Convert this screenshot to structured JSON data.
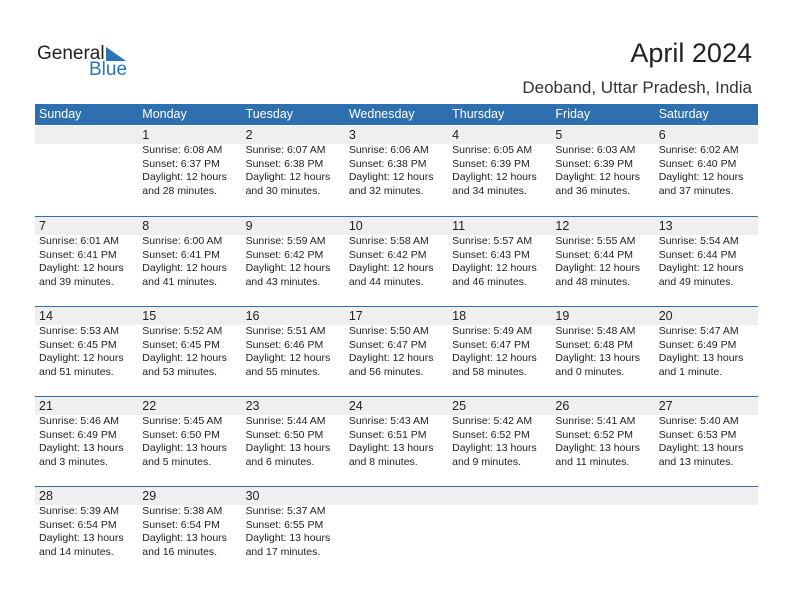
{
  "logo": {
    "word1": "General",
    "word2": "Blue"
  },
  "title": "April 2024",
  "location": "Deoband, Uttar Pradesh, India",
  "weekdays": [
    "Sunday",
    "Monday",
    "Tuesday",
    "Wednesday",
    "Thursday",
    "Friday",
    "Saturday"
  ],
  "first_weekday_offset": 1,
  "days": [
    {
      "d": "1",
      "sunrise": "Sunrise: 6:08 AM",
      "sunset": "Sunset: 6:37 PM",
      "daylight1": "Daylight: 12 hours",
      "daylight2": "and 28 minutes."
    },
    {
      "d": "2",
      "sunrise": "Sunrise: 6:07 AM",
      "sunset": "Sunset: 6:38 PM",
      "daylight1": "Daylight: 12 hours",
      "daylight2": "and 30 minutes."
    },
    {
      "d": "3",
      "sunrise": "Sunrise: 6:06 AM",
      "sunset": "Sunset: 6:38 PM",
      "daylight1": "Daylight: 12 hours",
      "daylight2": "and 32 minutes."
    },
    {
      "d": "4",
      "sunrise": "Sunrise: 6:05 AM",
      "sunset": "Sunset: 6:39 PM",
      "daylight1": "Daylight: 12 hours",
      "daylight2": "and 34 minutes."
    },
    {
      "d": "5",
      "sunrise": "Sunrise: 6:03 AM",
      "sunset": "Sunset: 6:39 PM",
      "daylight1": "Daylight: 12 hours",
      "daylight2": "and 36 minutes."
    },
    {
      "d": "6",
      "sunrise": "Sunrise: 6:02 AM",
      "sunset": "Sunset: 6:40 PM",
      "daylight1": "Daylight: 12 hours",
      "daylight2": "and 37 minutes."
    },
    {
      "d": "7",
      "sunrise": "Sunrise: 6:01 AM",
      "sunset": "Sunset: 6:41 PM",
      "daylight1": "Daylight: 12 hours",
      "daylight2": "and 39 minutes."
    },
    {
      "d": "8",
      "sunrise": "Sunrise: 6:00 AM",
      "sunset": "Sunset: 6:41 PM",
      "daylight1": "Daylight: 12 hours",
      "daylight2": "and 41 minutes."
    },
    {
      "d": "9",
      "sunrise": "Sunrise: 5:59 AM",
      "sunset": "Sunset: 6:42 PM",
      "daylight1": "Daylight: 12 hours",
      "daylight2": "and 43 minutes."
    },
    {
      "d": "10",
      "sunrise": "Sunrise: 5:58 AM",
      "sunset": "Sunset: 6:42 PM",
      "daylight1": "Daylight: 12 hours",
      "daylight2": "and 44 minutes."
    },
    {
      "d": "11",
      "sunrise": "Sunrise: 5:57 AM",
      "sunset": "Sunset: 6:43 PM",
      "daylight1": "Daylight: 12 hours",
      "daylight2": "and 46 minutes."
    },
    {
      "d": "12",
      "sunrise": "Sunrise: 5:55 AM",
      "sunset": "Sunset: 6:44 PM",
      "daylight1": "Daylight: 12 hours",
      "daylight2": "and 48 minutes."
    },
    {
      "d": "13",
      "sunrise": "Sunrise: 5:54 AM",
      "sunset": "Sunset: 6:44 PM",
      "daylight1": "Daylight: 12 hours",
      "daylight2": "and 49 minutes."
    },
    {
      "d": "14",
      "sunrise": "Sunrise: 5:53 AM",
      "sunset": "Sunset: 6:45 PM",
      "daylight1": "Daylight: 12 hours",
      "daylight2": "and 51 minutes."
    },
    {
      "d": "15",
      "sunrise": "Sunrise: 5:52 AM",
      "sunset": "Sunset: 6:45 PM",
      "daylight1": "Daylight: 12 hours",
      "daylight2": "and 53 minutes."
    },
    {
      "d": "16",
      "sunrise": "Sunrise: 5:51 AM",
      "sunset": "Sunset: 6:46 PM",
      "daylight1": "Daylight: 12 hours",
      "daylight2": "and 55 minutes."
    },
    {
      "d": "17",
      "sunrise": "Sunrise: 5:50 AM",
      "sunset": "Sunset: 6:47 PM",
      "daylight1": "Daylight: 12 hours",
      "daylight2": "and 56 minutes."
    },
    {
      "d": "18",
      "sunrise": "Sunrise: 5:49 AM",
      "sunset": "Sunset: 6:47 PM",
      "daylight1": "Daylight: 12 hours",
      "daylight2": "and 58 minutes."
    },
    {
      "d": "19",
      "sunrise": "Sunrise: 5:48 AM",
      "sunset": "Sunset: 6:48 PM",
      "daylight1": "Daylight: 13 hours",
      "daylight2": "and 0 minutes."
    },
    {
      "d": "20",
      "sunrise": "Sunrise: 5:47 AM",
      "sunset": "Sunset: 6:49 PM",
      "daylight1": "Daylight: 13 hours",
      "daylight2": "and 1 minute."
    },
    {
      "d": "21",
      "sunrise": "Sunrise: 5:46 AM",
      "sunset": "Sunset: 6:49 PM",
      "daylight1": "Daylight: 13 hours",
      "daylight2": "and 3 minutes."
    },
    {
      "d": "22",
      "sunrise": "Sunrise: 5:45 AM",
      "sunset": "Sunset: 6:50 PM",
      "daylight1": "Daylight: 13 hours",
      "daylight2": "and 5 minutes."
    },
    {
      "d": "23",
      "sunrise": "Sunrise: 5:44 AM",
      "sunset": "Sunset: 6:50 PM",
      "daylight1": "Daylight: 13 hours",
      "daylight2": "and 6 minutes."
    },
    {
      "d": "24",
      "sunrise": "Sunrise: 5:43 AM",
      "sunset": "Sunset: 6:51 PM",
      "daylight1": "Daylight: 13 hours",
      "daylight2": "and 8 minutes."
    },
    {
      "d": "25",
      "sunrise": "Sunrise: 5:42 AM",
      "sunset": "Sunset: 6:52 PM",
      "daylight1": "Daylight: 13 hours",
      "daylight2": "and 9 minutes."
    },
    {
      "d": "26",
      "sunrise": "Sunrise: 5:41 AM",
      "sunset": "Sunset: 6:52 PM",
      "daylight1": "Daylight: 13 hours",
      "daylight2": "and 11 minutes."
    },
    {
      "d": "27",
      "sunrise": "Sunrise: 5:40 AM",
      "sunset": "Sunset: 6:53 PM",
      "daylight1": "Daylight: 13 hours",
      "daylight2": "and 13 minutes."
    },
    {
      "d": "28",
      "sunrise": "Sunrise: 5:39 AM",
      "sunset": "Sunset: 6:54 PM",
      "daylight1": "Daylight: 13 hours",
      "daylight2": "and 14 minutes."
    },
    {
      "d": "29",
      "sunrise": "Sunrise: 5:38 AM",
      "sunset": "Sunset: 6:54 PM",
      "daylight1": "Daylight: 13 hours",
      "daylight2": "and 16 minutes."
    },
    {
      "d": "30",
      "sunrise": "Sunrise: 5:37 AM",
      "sunset": "Sunset: 6:55 PM",
      "daylight1": "Daylight: 13 hours",
      "daylight2": "and 17 minutes."
    }
  ]
}
